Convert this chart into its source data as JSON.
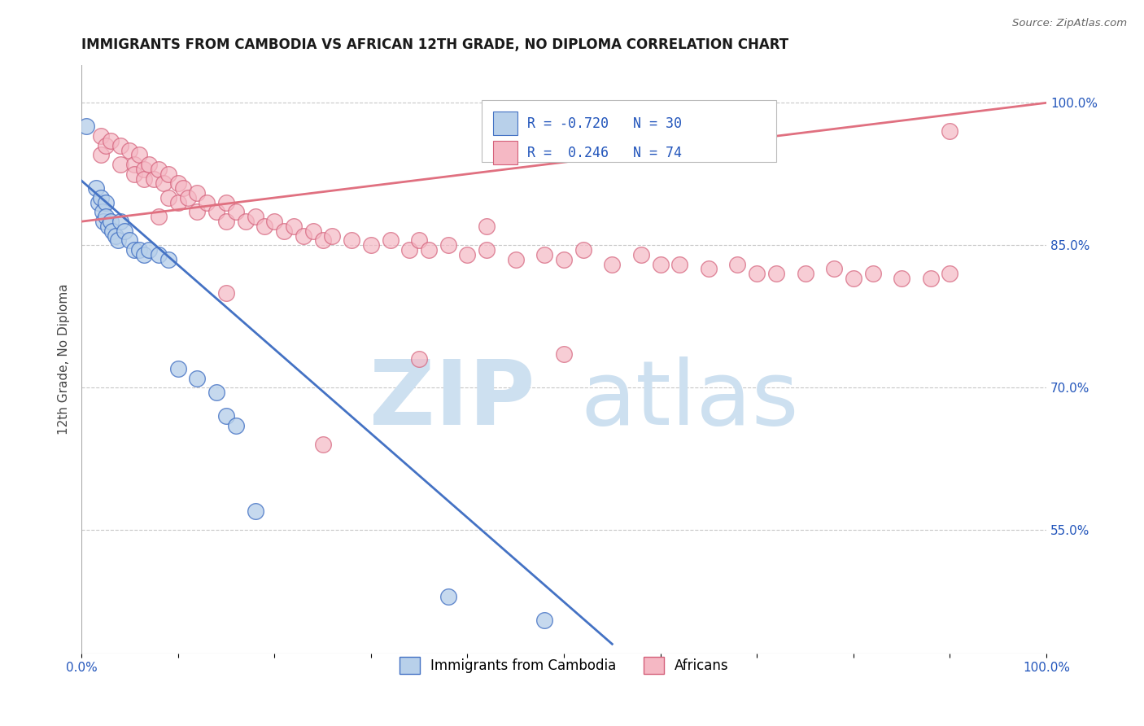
{
  "title": "IMMIGRANTS FROM CAMBODIA VS AFRICAN 12TH GRADE, NO DIPLOMA CORRELATION CHART",
  "source": "Source: ZipAtlas.com",
  "ylabel": "12th Grade, No Diploma",
  "watermark_zip": "ZIP",
  "watermark_atlas": "atlas",
  "legend_r_cambodia": "-0.720",
  "legend_n_cambodia": "30",
  "legend_r_african": "0.246",
  "legend_n_african": "74",
  "cambodia_color": "#b8d0ea",
  "african_color": "#f5b8c4",
  "cambodia_line_color": "#4472c4",
  "african_line_color": "#e07080",
  "cambodia_scatter_x": [
    0.005,
    0.015,
    0.018,
    0.02,
    0.022,
    0.023,
    0.025,
    0.025,
    0.028,
    0.03,
    0.032,
    0.035,
    0.038,
    0.04,
    0.045,
    0.05,
    0.055,
    0.06,
    0.065,
    0.07,
    0.08,
    0.09,
    0.1,
    0.12,
    0.14,
    0.15,
    0.16,
    0.18,
    0.38,
    0.48
  ],
  "cambodia_scatter_y": [
    0.975,
    0.91,
    0.895,
    0.9,
    0.885,
    0.875,
    0.895,
    0.88,
    0.87,
    0.875,
    0.865,
    0.86,
    0.855,
    0.875,
    0.865,
    0.855,
    0.845,
    0.845,
    0.84,
    0.845,
    0.84,
    0.835,
    0.72,
    0.71,
    0.695,
    0.67,
    0.66,
    0.57,
    0.48,
    0.455
  ],
  "african_scatter_x": [
    0.02,
    0.02,
    0.025,
    0.03,
    0.04,
    0.04,
    0.05,
    0.055,
    0.055,
    0.06,
    0.065,
    0.065,
    0.07,
    0.075,
    0.08,
    0.085,
    0.09,
    0.09,
    0.1,
    0.1,
    0.105,
    0.11,
    0.12,
    0.12,
    0.13,
    0.14,
    0.15,
    0.15,
    0.16,
    0.17,
    0.18,
    0.19,
    0.2,
    0.21,
    0.22,
    0.23,
    0.24,
    0.25,
    0.26,
    0.28,
    0.3,
    0.32,
    0.34,
    0.35,
    0.36,
    0.38,
    0.4,
    0.42,
    0.45,
    0.48,
    0.5,
    0.52,
    0.55,
    0.58,
    0.6,
    0.62,
    0.65,
    0.68,
    0.7,
    0.72,
    0.75,
    0.78,
    0.8,
    0.82,
    0.85,
    0.88,
    0.9,
    0.42,
    0.25,
    0.15,
    0.08,
    0.35,
    0.5,
    0.9
  ],
  "african_scatter_y": [
    0.965,
    0.945,
    0.955,
    0.96,
    0.955,
    0.935,
    0.95,
    0.935,
    0.925,
    0.945,
    0.93,
    0.92,
    0.935,
    0.92,
    0.93,
    0.915,
    0.925,
    0.9,
    0.915,
    0.895,
    0.91,
    0.9,
    0.905,
    0.885,
    0.895,
    0.885,
    0.895,
    0.875,
    0.885,
    0.875,
    0.88,
    0.87,
    0.875,
    0.865,
    0.87,
    0.86,
    0.865,
    0.855,
    0.86,
    0.855,
    0.85,
    0.855,
    0.845,
    0.855,
    0.845,
    0.85,
    0.84,
    0.845,
    0.835,
    0.84,
    0.835,
    0.845,
    0.83,
    0.84,
    0.83,
    0.83,
    0.825,
    0.83,
    0.82,
    0.82,
    0.82,
    0.825,
    0.815,
    0.82,
    0.815,
    0.815,
    0.82,
    0.87,
    0.64,
    0.8,
    0.88,
    0.73,
    0.735,
    0.97
  ],
  "cambodia_line_x": [
    0.0,
    0.55
  ],
  "cambodia_line_y": [
    0.918,
    0.43
  ],
  "african_line_x": [
    0.0,
    1.0
  ],
  "african_line_y": [
    0.875,
    1.0
  ],
  "xlim": [
    0.0,
    1.0
  ],
  "ylim": [
    0.42,
    1.04
  ],
  "right_yticks": [
    0.55,
    0.7,
    0.85,
    1.0
  ],
  "right_yticklabels": [
    "55.0%",
    "70.0%",
    "85.0%",
    "100.0%"
  ]
}
